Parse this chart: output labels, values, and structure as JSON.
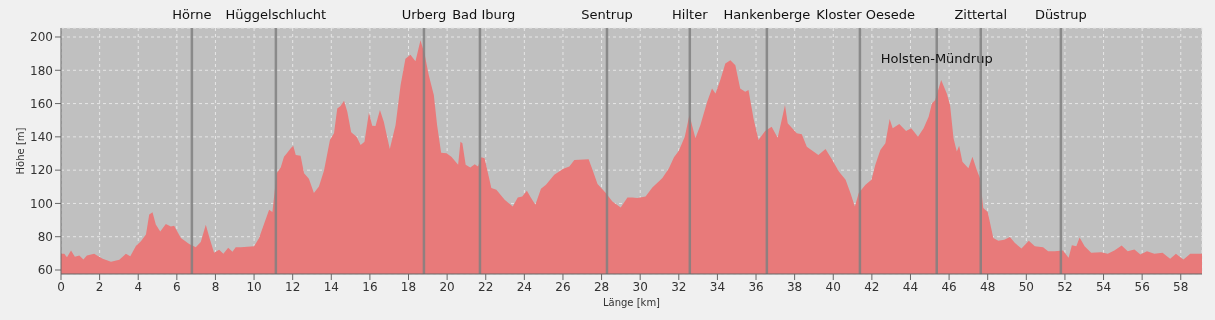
{
  "chart_data": {
    "type": "area",
    "xlabel": "Länge [km]",
    "ylabel": "Höhe [m]",
    "color": "#e87a7a",
    "grid": true,
    "xlim": [
      0,
      59.1
    ],
    "ylim": [
      57.6,
      205.4
    ],
    "xticks": [
      0,
      2,
      4,
      6,
      8,
      10,
      12,
      14,
      16,
      18,
      20,
      22,
      24,
      26,
      28,
      30,
      32,
      34,
      36,
      38,
      40,
      42,
      44,
      46,
      48,
      50,
      52,
      54,
      56,
      58
    ],
    "yticks": [
      60,
      80,
      100,
      120,
      140,
      160,
      180,
      200
    ],
    "x": [
      0,
      0.17,
      0.31,
      0.52,
      0.72,
      0.95,
      1.16,
      1.34,
      1.72,
      2.16,
      2.59,
      3.02,
      3.36,
      3.59,
      3.88,
      4.14,
      4.4,
      4.57,
      4.74,
      4.91,
      5.14,
      5.43,
      5.69,
      5.86,
      6.21,
      6.64,
      6.98,
      7.24,
      7.5,
      7.72,
      7.93,
      8.19,
      8.41,
      8.66,
      8.88,
      9.05,
      9.31,
      10.0,
      10.26,
      10.52,
      10.78,
      10.95,
      11.17,
      11.38,
      11.55,
      11.72,
      11.9,
      12.03,
      12.16,
      12.41,
      12.59,
      12.84,
      13.1,
      13.36,
      13.62,
      13.93,
      14.14,
      14.31,
      14.48,
      14.66,
      14.83,
      15.03,
      15.31,
      15.52,
      15.72,
      15.95,
      16.12,
      16.29,
      16.52,
      16.72,
      17.03,
      17.33,
      17.59,
      17.84,
      18.1,
      18.36,
      18.62,
      18.83,
      19.05,
      19.31,
      19.48,
      19.69,
      19.97,
      20.22,
      20.57,
      20.69,
      20.79,
      20.96,
      21.2,
      21.43,
      21.6,
      21.77,
      21.94,
      22.29,
      22.55,
      22.98,
      23.4,
      23.66,
      23.89,
      24.13,
      24.35,
      24.57,
      24.86,
      25.12,
      25.55,
      26.02,
      26.33,
      26.59,
      27.33,
      27.53,
      27.79,
      28.22,
      28.56,
      28.99,
      29.34,
      29.6,
      29.85,
      30.28,
      30.63,
      31.14,
      31.49,
      31.75,
      32.0,
      32.31,
      32.55,
      32.86,
      33.12,
      33.47,
      33.72,
      33.9,
      34.15,
      34.41,
      34.67,
      34.93,
      35.18,
      35.44,
      35.61,
      35.87,
      36.13,
      36.47,
      36.81,
      37.12,
      37.33,
      37.5,
      37.64,
      38.11,
      38.37,
      38.63,
      39.23,
      39.6,
      39.95,
      40.29,
      40.64,
      40.89,
      41.12,
      41.32,
      41.67,
      41.98,
      42.18,
      42.44,
      42.7,
      42.92,
      43.08,
      43.42,
      43.77,
      44.04,
      44.39,
      44.68,
      44.94,
      45.11,
      45.28,
      45.59,
      45.88,
      46.05,
      46.23,
      46.4,
      46.52,
      46.69,
      47.0,
      47.21,
      47.43,
      47.6,
      47.77,
      48.0,
      48.29,
      48.55,
      48.86,
      49.15,
      49.41,
      49.75,
      50.13,
      50.44,
      50.87,
      51.13,
      51.47,
      51.9,
      52.19,
      52.36,
      52.59,
      52.76,
      53.02,
      53.36,
      53.88,
      54.22,
      54.56,
      54.94,
      55.25,
      55.6,
      55.91,
      56.25,
      56.63,
      57.06,
      57.45,
      57.75,
      58.14,
      58.49,
      59.1
    ],
    "values": [
      69.7,
      69.7,
      67.7,
      71.7,
      67.9,
      68.7,
      66.3,
      68.7,
      69.7,
      66.7,
      64.9,
      66.1,
      69.7,
      68.3,
      74.4,
      77.3,
      81.3,
      93.3,
      94.7,
      87.3,
      83.2,
      87.6,
      86.2,
      86.6,
      79.2,
      75.6,
      73.6,
      76.8,
      87.2,
      78.2,
      70.3,
      72.2,
      69.7,
      73.3,
      70.9,
      73.7,
      73.7,
      74.3,
      79.3,
      87.8,
      96.2,
      94.8,
      118.2,
      121.6,
      128.1,
      130.5,
      133.1,
      134.7,
      129.1,
      128.7,
      118.2,
      114.8,
      106.2,
      110.2,
      119.6,
      138.1,
      142.1,
      157.1,
      158.5,
      161.7,
      155.1,
      142.7,
      140.1,
      135.1,
      137.1,
      154.7,
      146.7,
      146.5,
      156.1,
      149.1,
      132.7,
      147.1,
      171.1,
      187.0,
      189.4,
      185.4,
      198.0,
      190.0,
      177.0,
      165.1,
      147.1,
      130.5,
      130.1,
      128.1,
      123.2,
      137.1,
      136.1,
      123.2,
      121.6,
      123.6,
      122.2,
      127.7,
      127.1,
      109.2,
      108.2,
      102.2,
      98.2,
      103.6,
      104.2,
      107.6,
      103.2,
      99.2,
      108.8,
      111.2,
      117.2,
      120.8,
      122.2,
      126.1,
      126.5,
      120.2,
      111.6,
      106.2,
      101.2,
      97.6,
      103.6,
      103.6,
      103.2,
      104.2,
      109.6,
      115.2,
      121.2,
      127.7,
      131.6,
      140.1,
      153.1,
      139.1,
      147.1,
      161.1,
      169.1,
      166.1,
      174.1,
      184.0,
      186.0,
      183.0,
      169.1,
      167.1,
      168.1,
      151.1,
      138.1,
      143.5,
      146.1,
      139.5,
      150.1,
      159.1,
      148.1,
      142.1,
      141.5,
      134.1,
      129.1,
      132.7,
      126.1,
      119.2,
      114.2,
      106.2,
      98.2,
      106.2,
      111.2,
      114.2,
      123.2,
      132.1,
      136.1,
      150.7,
      145.1,
      147.7,
      143.5,
      145.1,
      140.1,
      145.1,
      152.1,
      160.1,
      162.1,
      174.1,
      166.1,
      159.1,
      139.1,
      131.2,
      134.7,
      125.1,
      121.2,
      128.1,
      120.2,
      115.2,
      97.2,
      94.8,
      79.2,
      77.6,
      78.2,
      79.8,
      76.2,
      72.9,
      77.6,
      74.3,
      73.7,
      71.3,
      71.3,
      71.7,
      67.3,
      74.9,
      74.3,
      79.6,
      74.3,
      70.3,
      70.7,
      69.7,
      71.7,
      74.7,
      71.3,
      72.3,
      69.3,
      71.3,
      69.7,
      70.3,
      66.7,
      69.7,
      66.3,
      69.7,
      69.7
    ],
    "ref_lines": [
      {
        "axis": "x",
        "value": 6.78,
        "label": "Hörne",
        "color": "#808080"
      },
      {
        "axis": "x",
        "value": 11.13,
        "label": "Hüggelschlucht",
        "color": "#808080"
      },
      {
        "axis": "x",
        "value": 18.8,
        "label": "Urberg",
        "color": "#808080"
      },
      {
        "axis": "x",
        "value": 21.7,
        "label": "Bad Iburg",
        "color": "#808080"
      },
      {
        "axis": "x",
        "value": 28.28,
        "label": "Sentrup",
        "color": "#808080"
      },
      {
        "axis": "x",
        "value": 32.57,
        "label": "Hilter",
        "color": "#808080"
      },
      {
        "axis": "x",
        "value": 36.56,
        "label": "Hankenberge",
        "color": "#808080"
      },
      {
        "axis": "x",
        "value": 41.38,
        "label": "Kloster Oesede",
        "color": "#808080"
      },
      {
        "axis": "x",
        "value": 45.36,
        "label": "Holsten-Mündrup",
        "color": "#808080"
      },
      {
        "axis": "x",
        "value": 47.64,
        "label": "Zittertal",
        "color": "#808080"
      },
      {
        "axis": "x",
        "value": 51.79,
        "label": "Düstrup",
        "color": "#808080"
      }
    ]
  }
}
